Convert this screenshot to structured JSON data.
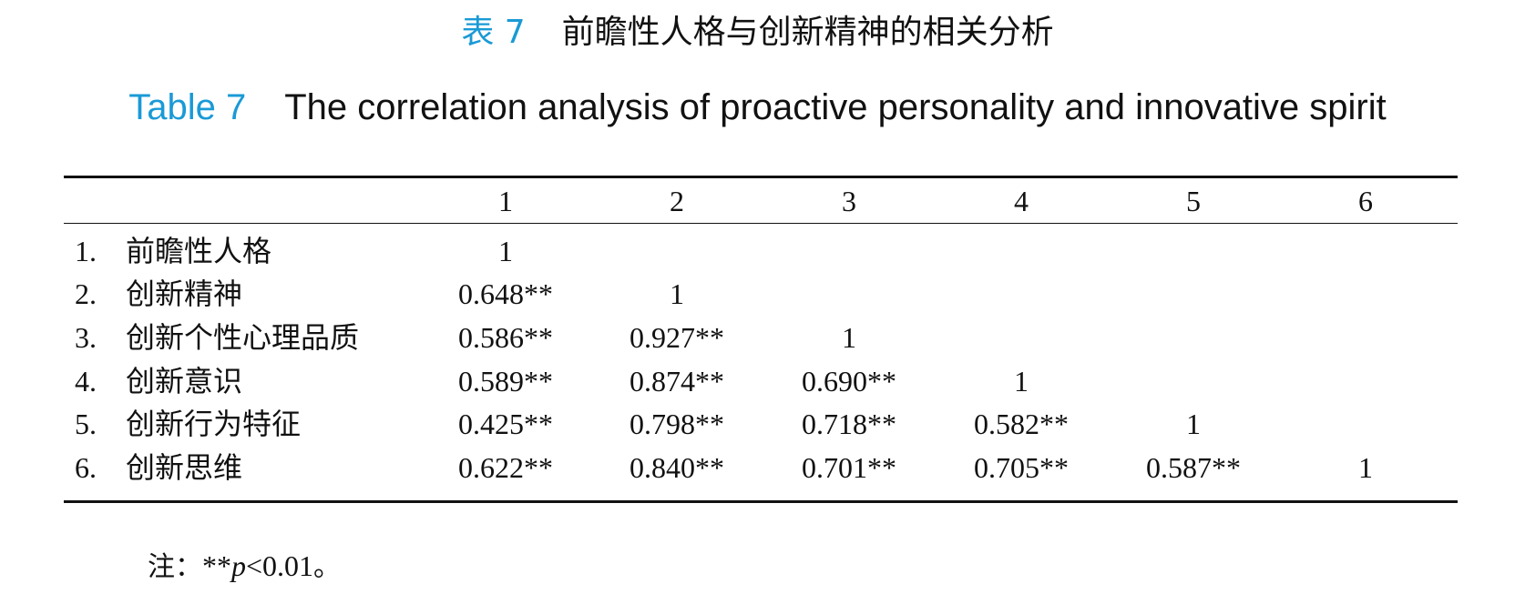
{
  "title_cn": {
    "label": "表 7",
    "text": "前瞻性人格与创新精神的相关分析"
  },
  "title_en": {
    "label": "Table 7",
    "text": "The correlation analysis of proactive personality and innovative spirit"
  },
  "colors": {
    "label_accent": "#1a9ad6",
    "text": "#111111",
    "rules": "#111111"
  },
  "table": {
    "headers": [
      "1",
      "2",
      "3",
      "4",
      "5",
      "6"
    ],
    "rows": [
      {
        "num": "1.",
        "label": "前瞻性人格",
        "cells": [
          "1",
          "",
          "",
          "",
          "",
          ""
        ]
      },
      {
        "num": "2.",
        "label": "创新精神",
        "cells": [
          "0.648**",
          "1",
          "",
          "",
          "",
          ""
        ]
      },
      {
        "num": "3.",
        "label": "创新个性心理品质",
        "cells": [
          "0.586**",
          "0.927**",
          "1",
          "",
          "",
          ""
        ]
      },
      {
        "num": "4.",
        "label": "创新意识",
        "cells": [
          "0.589**",
          "0.874**",
          "0.690**",
          "1",
          "",
          ""
        ]
      },
      {
        "num": "5.",
        "label": "创新行为特征",
        "cells": [
          "0.425**",
          "0.798**",
          "0.718**",
          "0.582**",
          "1",
          ""
        ]
      },
      {
        "num": "6.",
        "label": "创新思维",
        "cells": [
          "0.622**",
          "0.840**",
          "0.701**",
          "0.705**",
          "0.587**",
          "1"
        ]
      }
    ]
  },
  "note": {
    "prefix": "注：",
    "stars": "**",
    "p": "p",
    "condition": "<0.01",
    "end": "。"
  }
}
